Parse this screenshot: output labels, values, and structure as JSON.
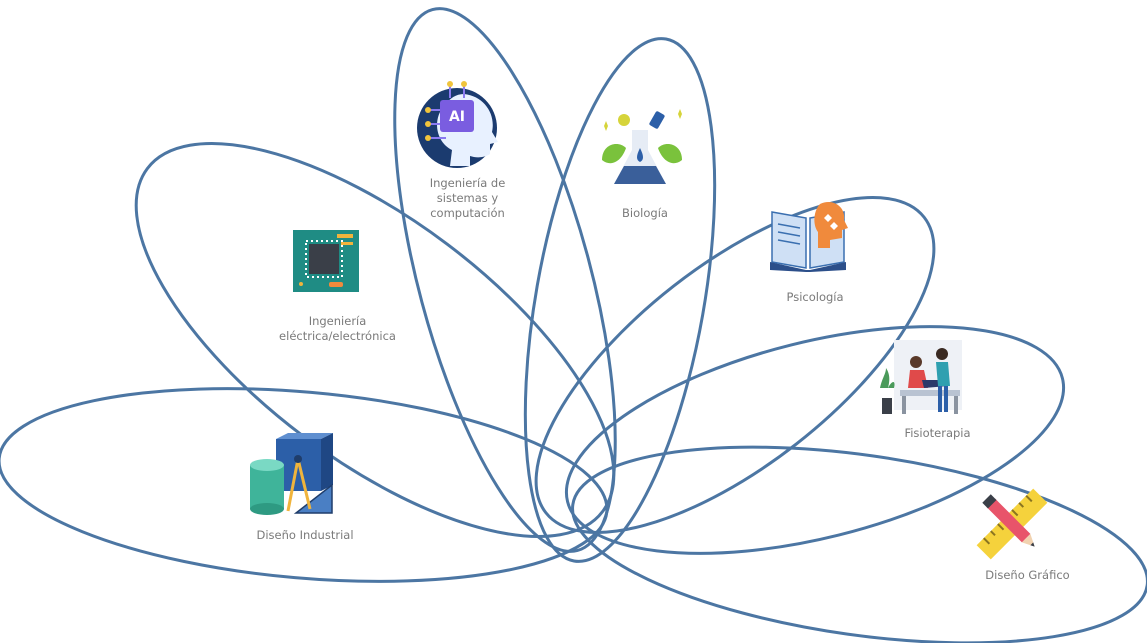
{
  "colors": {
    "petal_stroke": "#4c76a3",
    "label_text": "#7a7a7a"
  },
  "careers": [
    {
      "id": "diseno-industrial",
      "label": "Diseño Industrial",
      "icon": "drafting-tools-icon"
    },
    {
      "id": "ingenieria-electrica",
      "label": "Ingeniería\neléctrica/electrónica",
      "icon": "circuit-chip-icon"
    },
    {
      "id": "ingenieria-sistemas",
      "label": "Ingeniería de\nsistemas y\ncomputación",
      "icon": "ai-brain-icon"
    },
    {
      "id": "biologia",
      "label": "Biología",
      "icon": "lab-flask-icon"
    },
    {
      "id": "psicologia",
      "label": "Psicología",
      "icon": "book-mind-icon"
    },
    {
      "id": "fisioterapia",
      "label": "Fisioterapia",
      "icon": "therapy-session-icon"
    },
    {
      "id": "diseno-grafico",
      "label": "Diseño Gráfico",
      "icon": "ruler-pencil-icon"
    }
  ]
}
